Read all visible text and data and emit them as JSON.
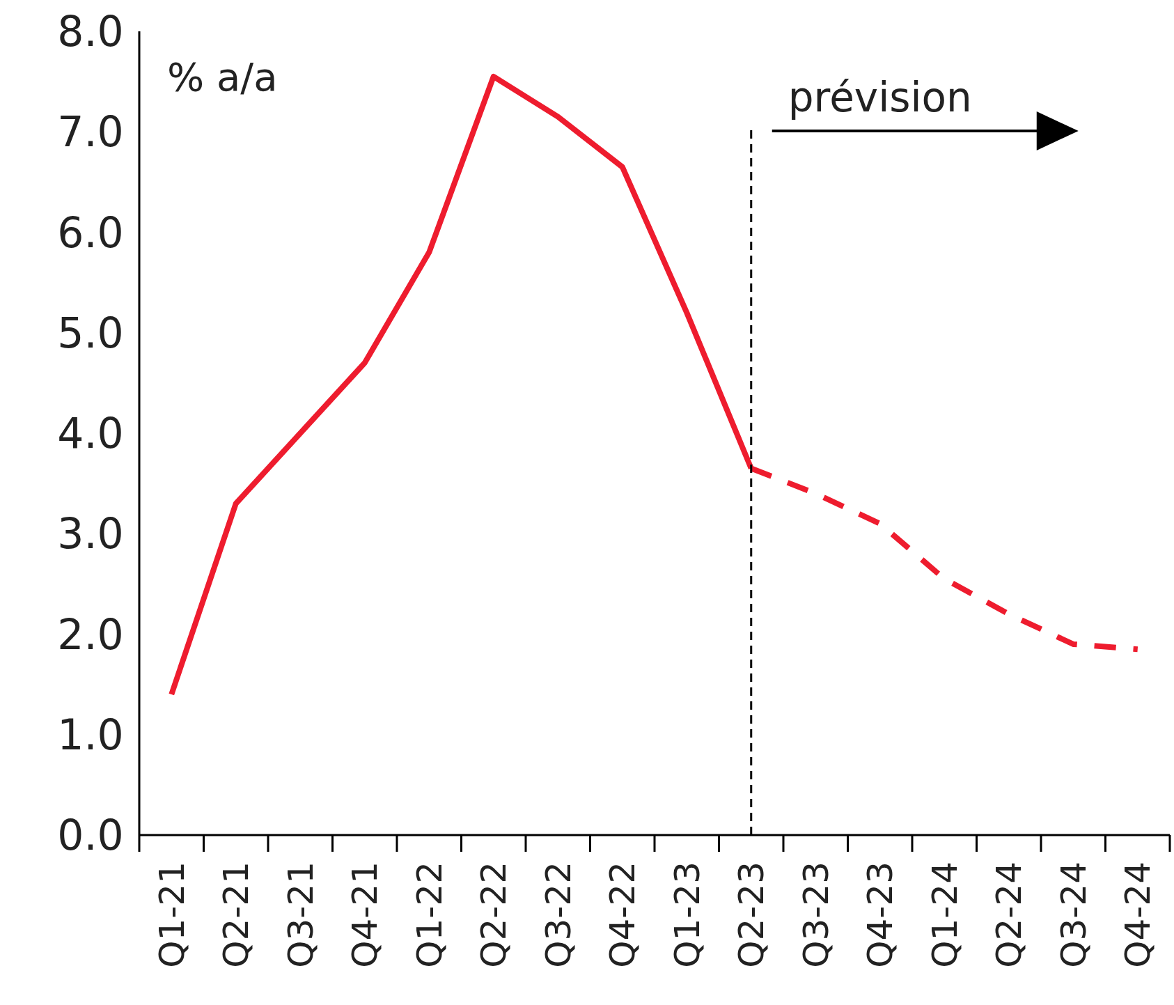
{
  "chart_data": {
    "type": "line",
    "ylabel": "% a/a",
    "categories": [
      "Q1-21",
      "Q2-21",
      "Q3-21",
      "Q4-21",
      "Q1-22",
      "Q2-22",
      "Q3-22",
      "Q4-22",
      "Q1-23",
      "Q2-23",
      "Q3-23",
      "Q4-23",
      "Q1-24",
      "Q2-24",
      "Q3-24",
      "Q4-24"
    ],
    "series": [
      {
        "color": "#ee1c2e",
        "line_style": "solid",
        "values": [
          1.4,
          3.3,
          4.0,
          4.7,
          5.8,
          7.55,
          7.15,
          6.65,
          5.2,
          3.65,
          null,
          null,
          null,
          null,
          null,
          null
        ]
      },
      {
        "color": "#ee1c2e",
        "line_style": "dashed",
        "values": [
          null,
          null,
          null,
          null,
          null,
          null,
          null,
          null,
          null,
          3.65,
          3.4,
          3.1,
          2.55,
          2.2,
          1.9,
          1.85
        ]
      }
    ],
    "ylim": [
      0,
      8
    ],
    "yticks": [
      {
        "value": 0,
        "label": "0.0"
      },
      {
        "value": 1,
        "label": "1.0"
      },
      {
        "value": 2,
        "label": "2.0"
      },
      {
        "value": 3,
        "label": "3.0"
      },
      {
        "value": 4,
        "label": "4.0"
      },
      {
        "value": 5,
        "label": "5.0"
      },
      {
        "value": 6,
        "label": "6.0"
      },
      {
        "value": 7,
        "label": "7.0"
      },
      {
        "value": 8,
        "label": "8.0"
      }
    ],
    "ref_lines": [
      {
        "axis": "x",
        "value": "Q2-23",
        "label": "prévision",
        "color": "#000000",
        "line_style": "dashed"
      }
    ],
    "grid": false,
    "marker": "none"
  }
}
